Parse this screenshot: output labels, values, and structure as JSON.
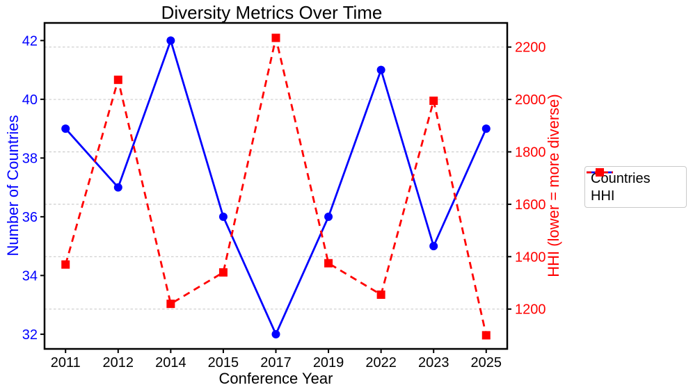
{
  "chart_data": {
    "type": "line",
    "title": "Diversity Metrics Over Time",
    "xlabel": "Conference Year",
    "categories": [
      "2011",
      "2012",
      "2014",
      "2015",
      "2017",
      "2019",
      "2022",
      "2023",
      "2025"
    ],
    "series": [
      {
        "name": "Countries",
        "axis": "left",
        "color": "#0000ff",
        "line_style": "solid",
        "marker": "circle",
        "values": [
          39,
          37,
          42,
          36,
          32,
          36,
          41,
          35,
          39
        ]
      },
      {
        "name": "HHI",
        "axis": "right",
        "color": "#ff0000",
        "line_style": "dashed",
        "marker": "square",
        "values": [
          1370,
          2075,
          1220,
          1340,
          2235,
          1375,
          1255,
          1995,
          1100
        ]
      }
    ],
    "left_axis": {
      "label": "Number of Countries",
      "color": "#0000ff",
      "ticks": [
        32,
        34,
        36,
        38,
        40,
        42
      ],
      "ylim": [
        31.5,
        42.6
      ]
    },
    "right_axis": {
      "label": "HHI (lower = more diverse)",
      "color": "#ff0000",
      "ticks": [
        1200,
        1400,
        1600,
        1800,
        2000,
        2200
      ],
      "ylim": [
        1048,
        2292
      ]
    },
    "legend": {
      "position": "outside-right",
      "entries": [
        "Countries",
        "HHI"
      ]
    },
    "grid": {
      "aligned_to": "right-axis",
      "style": "dashed",
      "color": "#cccccc"
    }
  }
}
